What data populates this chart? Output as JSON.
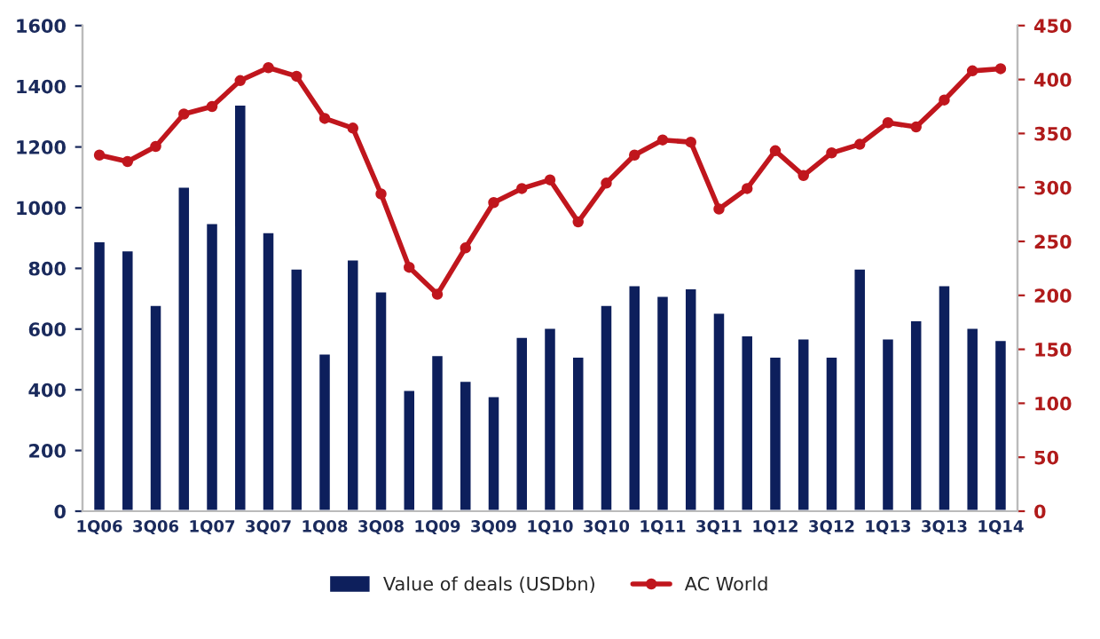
{
  "chart_data": {
    "type": "bar",
    "categories": [
      "1Q06",
      null,
      "3Q06",
      null,
      "1Q07",
      null,
      "3Q07",
      null,
      "1Q08",
      null,
      "3Q08",
      null,
      "1Q09",
      null,
      "3Q09",
      null,
      "1Q10",
      null,
      "3Q10",
      null,
      "1Q11",
      null,
      "3Q11",
      null,
      "1Q12",
      null,
      "3Q12",
      null,
      "1Q13",
      null,
      "3Q13",
      null,
      "1Q14"
    ],
    "series": [
      {
        "name": "Value of deals (USDbn)",
        "color": "#0d1f5c",
        "values": [
          890,
          860,
          680,
          1070,
          950,
          1340,
          920,
          800,
          520,
          830,
          725,
          400,
          515,
          430,
          380,
          575,
          605,
          510,
          680,
          745,
          710,
          735,
          655,
          580,
          510,
          570,
          510,
          800,
          570,
          630,
          745,
          605,
          565
        ]
      },
      {
        "name": "AC World",
        "type": "line",
        "axis": "y2",
        "color": "#c0161d",
        "marker": "circle",
        "values": [
          330,
          324,
          338,
          368,
          375,
          399,
          411,
          403,
          364,
          355,
          294,
          226,
          201,
          244,
          286,
          299,
          307,
          268,
          304,
          330,
          344,
          342,
          280,
          299,
          334,
          311,
          332,
          340,
          360,
          356,
          381,
          408,
          410
        ]
      }
    ],
    "ylim": [
      0,
      1600
    ],
    "yticks": [
      0,
      200,
      400,
      600,
      800,
      1000,
      1200,
      1400,
      1600
    ],
    "y2lim": [
      0,
      450
    ],
    "y2ticks": [
      0,
      50,
      100,
      150,
      200,
      250,
      300,
      350,
      400,
      450
    ],
    "legend": "bottom",
    "grid": false
  }
}
